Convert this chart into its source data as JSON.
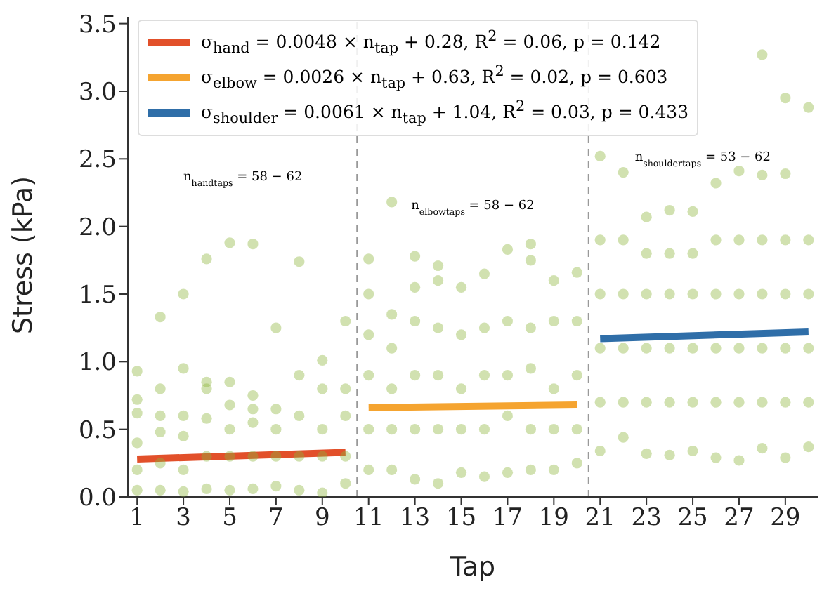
{
  "chart_data": {
    "type": "scatter",
    "xlabel": "Tap",
    "ylabel": "Stress (kPa)",
    "xlim": [
      0.6,
      30.4
    ],
    "ylim": [
      0,
      3.55
    ],
    "xticks": [
      1,
      3,
      5,
      7,
      9,
      11,
      13,
      15,
      17,
      19,
      21,
      23,
      25,
      27,
      29
    ],
    "yticks": [
      {
        "value": 0,
        "label": "0.0"
      },
      0.5,
      {
        "value": 1,
        "label": "1.0"
      },
      1.5,
      {
        "value": 2,
        "label": "2.0"
      },
      2.5,
      {
        "value": 3,
        "label": "3.0"
      },
      3.5
    ],
    "grid": false,
    "legend": "top left",
    "ref_lines": [
      {
        "axis": "x",
        "value": 10.5,
        "color": "#999999",
        "line_style": "dashed"
      },
      {
        "axis": "x",
        "value": 20.5,
        "color": "#999999",
        "line_style": "dashed"
      }
    ],
    "annotations": [
      "n$_{handtaps}$ = 58 − 62",
      "n$_{elbowtaps}$ = 58 − 62",
      "n$_{shouldertaps}$ = 53 − 62"
    ],
    "series": [
      {
        "marker": "circle",
        "color": "#8db33a",
        "x": [
          1,
          1,
          1,
          1,
          1,
          1,
          2,
          2,
          2,
          2,
          2,
          2,
          3,
          3,
          3,
          3,
          3,
          3,
          4,
          4,
          4,
          4,
          4,
          4,
          5,
          5,
          5,
          5,
          5,
          5,
          6,
          6,
          6,
          6,
          6,
          6,
          7,
          7,
          7,
          7,
          7,
          8,
          8,
          8,
          8,
          8,
          9,
          9,
          9,
          9,
          9,
          10,
          10,
          10,
          10,
          10,
          11,
          11,
          11,
          11,
          11,
          11,
          12,
          12,
          12,
          12,
          12,
          12,
          13,
          13,
          13,
          13,
          13,
          13,
          14,
          14,
          14,
          14,
          14,
          14,
          15,
          15,
          15,
          15,
          15,
          16,
          16,
          16,
          16,
          16,
          17,
          17,
          17,
          17,
          17,
          18,
          18,
          18,
          18,
          18,
          18,
          19,
          19,
          19,
          19,
          19,
          20,
          20,
          20,
          20,
          20,
          21,
          21,
          21,
          21,
          21,
          21,
          22,
          22,
          22,
          22,
          22,
          22,
          23,
          23,
          23,
          23,
          23,
          23,
          24,
          24,
          24,
          24,
          24,
          24,
          25,
          25,
          25,
          25,
          25,
          25,
          26,
          26,
          26,
          26,
          26,
          26,
          27,
          27,
          27,
          27,
          27,
          27,
          28,
          28,
          28,
          28,
          28,
          28,
          28,
          29,
          29,
          29,
          29,
          29,
          29,
          29,
          30,
          30,
          30,
          30,
          30,
          30
        ],
        "values": [
          0.05,
          0.2,
          0.4,
          0.62,
          0.72,
          0.93,
          0.05,
          0.25,
          0.48,
          0.6,
          0.8,
          1.33,
          0.04,
          0.2,
          0.45,
          0.6,
          0.95,
          1.5,
          0.06,
          0.3,
          0.58,
          0.8,
          0.85,
          1.76,
          0.05,
          0.3,
          0.5,
          0.68,
          0.85,
          1.88,
          0.06,
          0.3,
          0.55,
          0.65,
          0.75,
          1.87,
          0.08,
          0.3,
          0.5,
          0.65,
          1.25,
          0.05,
          0.3,
          0.6,
          0.9,
          1.74,
          0.03,
          0.3,
          0.5,
          0.8,
          1.01,
          0.1,
          0.3,
          0.6,
          0.8,
          1.3,
          0.2,
          0.5,
          0.9,
          1.2,
          1.5,
          1.76,
          0.2,
          0.5,
          0.8,
          1.1,
          1.35,
          2.18,
          0.13,
          0.5,
          0.9,
          1.3,
          1.55,
          1.78,
          0.1,
          0.5,
          0.9,
          1.25,
          1.6,
          1.71,
          0.18,
          0.5,
          0.8,
          1.2,
          1.55,
          0.15,
          0.5,
          0.9,
          1.25,
          1.65,
          0.18,
          0.6,
          0.9,
          1.3,
          1.83,
          0.2,
          0.5,
          0.95,
          1.25,
          1.75,
          1.87,
          0.2,
          0.5,
          0.8,
          1.3,
          1.6,
          0.25,
          0.5,
          0.9,
          1.3,
          1.66,
          0.34,
          0.7,
          1.1,
          1.5,
          1.9,
          2.52,
          0.44,
          0.7,
          1.1,
          1.5,
          1.9,
          2.4,
          0.32,
          0.7,
          1.1,
          1.5,
          1.8,
          2.07,
          0.31,
          0.7,
          1.1,
          1.5,
          1.8,
          2.12,
          0.34,
          0.7,
          1.1,
          1.5,
          1.8,
          2.11,
          0.29,
          0.7,
          1.1,
          1.5,
          1.9,
          2.32,
          0.27,
          0.7,
          1.1,
          1.5,
          1.9,
          2.41,
          0.36,
          0.7,
          1.1,
          1.5,
          1.9,
          2.38,
          3.27,
          0.29,
          0.7,
          1.1,
          1.5,
          1.9,
          2.39,
          2.95,
          0.37,
          0.7,
          1.1,
          1.5,
          1.9,
          2.88
        ]
      },
      {
        "type": "line",
        "name": "σ$_{hand}$ = 0.0048 × n$_{tap}$ + 0.28, R$^{2}$ = 0.06, p = 0.142",
        "color": "#e2502a",
        "x": [
          1,
          10
        ],
        "values": [
          0.28,
          0.33
        ]
      },
      {
        "type": "line",
        "name": "σ$_{elbow}$ = 0.0026 × n$_{tap}$ + 0.63, R$^{2}$ = 0.02, p = 0.603",
        "color": "#f5a430",
        "x": [
          11,
          20
        ],
        "values": [
          0.66,
          0.68
        ]
      },
      {
        "type": "line",
        "name": "σ$_{shoulder}$ = 0.0061 × n$_{tap}$ + 1.04, R$^{2}$ = 0.03, p = 0.433",
        "color": "#2f6ea8",
        "x": [
          21,
          30
        ],
        "values": [
          1.17,
          1.22
        ]
      }
    ]
  }
}
